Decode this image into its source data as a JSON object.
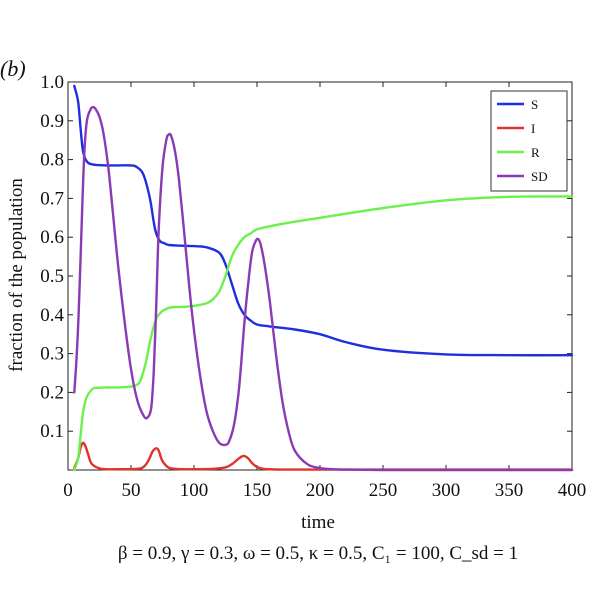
{
  "panel_label": "(b)",
  "params_text": "β = 0.9, γ = 0.3, ω = 0.5, κ = 0.5, C₁ = 100, C_sd = 1",
  "chart_data": {
    "type": "line",
    "xlabel": "time",
    "ylabel": "fraction of the population",
    "xlim": [
      0,
      400
    ],
    "ylim": [
      0,
      1.0
    ],
    "xticks": [
      0,
      50,
      100,
      150,
      200,
      250,
      300,
      350,
      400
    ],
    "yticks": [
      0.1,
      0.2,
      0.3,
      0.4,
      0.5,
      0.6,
      0.7,
      0.8,
      0.9,
      1.0
    ],
    "ytick_labels": [
      "0.1",
      "0.2",
      "0.3",
      "0.4",
      "0.5",
      "0.6",
      "0.7",
      "0.8",
      "0.9",
      "1.0"
    ],
    "grid": false,
    "legend_position": "top-right",
    "series": [
      {
        "name": "S",
        "color": "#1f2fe0",
        "x": [
          5,
          8,
          10,
          12,
          15,
          20,
          30,
          40,
          50,
          55,
          60,
          65,
          68,
          70,
          73,
          76,
          80,
          90,
          100,
          110,
          120,
          125,
          130,
          135,
          140,
          145,
          150,
          160,
          180,
          200,
          220,
          250,
          300,
          350,
          400
        ],
        "y": [
          0.99,
          0.95,
          0.88,
          0.82,
          0.795,
          0.787,
          0.785,
          0.785,
          0.785,
          0.78,
          0.76,
          0.7,
          0.64,
          0.61,
          0.59,
          0.585,
          0.58,
          0.578,
          0.577,
          0.574,
          0.56,
          0.53,
          0.48,
          0.43,
          0.4,
          0.385,
          0.375,
          0.37,
          0.362,
          0.35,
          0.33,
          0.31,
          0.298,
          0.296,
          0.296
        ]
      },
      {
        "name": "I",
        "color": "#e0332b",
        "x": [
          5,
          8,
          10,
          12,
          14,
          16,
          18,
          20,
          25,
          30,
          40,
          55,
          60,
          64,
          67,
          70,
          72,
          74,
          76,
          80,
          85,
          90,
          100,
          115,
          125,
          130,
          135,
          138,
          140,
          143,
          146,
          150,
          155,
          160,
          170,
          200,
          250,
          300,
          350,
          400
        ],
        "y": [
          0.005,
          0.03,
          0.058,
          0.07,
          0.06,
          0.04,
          0.02,
          0.012,
          0.004,
          0.002,
          0.002,
          0.003,
          0.008,
          0.025,
          0.047,
          0.056,
          0.05,
          0.03,
          0.018,
          0.006,
          0.003,
          0.002,
          0.002,
          0.003,
          0.007,
          0.015,
          0.028,
          0.035,
          0.036,
          0.03,
          0.018,
          0.008,
          0.003,
          0.002,
          0.001,
          0.001,
          0.001,
          0.001,
          0.001,
          0.001
        ]
      },
      {
        "name": "R",
        "color": "#6cf04c",
        "x": [
          5,
          8,
          10,
          12,
          14,
          16,
          20,
          25,
          30,
          40,
          50,
          55,
          58,
          62,
          65,
          68,
          70,
          72,
          75,
          78,
          80,
          85,
          90,
          100,
          110,
          115,
          120,
          125,
          130,
          135,
          140,
          145,
          150,
          160,
          180,
          200,
          250,
          300,
          350,
          400
        ],
        "y": [
          0.0,
          0.03,
          0.09,
          0.15,
          0.18,
          0.195,
          0.21,
          0.212,
          0.213,
          0.213,
          0.215,
          0.22,
          0.235,
          0.28,
          0.33,
          0.37,
          0.39,
          0.4,
          0.41,
          0.415,
          0.418,
          0.42,
          0.42,
          0.423,
          0.43,
          0.44,
          0.46,
          0.5,
          0.55,
          0.58,
          0.6,
          0.61,
          0.62,
          0.628,
          0.64,
          0.65,
          0.675,
          0.695,
          0.704,
          0.705
        ]
      },
      {
        "name": "SD",
        "color": "#8a3ab5",
        "x": [
          5,
          7,
          9,
          11,
          13,
          15,
          18,
          20,
          22,
          25,
          28,
          32,
          36,
          40,
          45,
          50,
          55,
          60,
          63,
          66,
          68,
          70,
          72,
          75,
          78,
          80,
          82,
          85,
          88,
          92,
          96,
          100,
          105,
          110,
          115,
          120,
          125,
          128,
          132,
          136,
          140,
          143,
          146,
          149,
          151,
          153,
          156,
          160,
          165,
          170,
          175,
          180,
          190,
          200,
          210,
          220,
          250,
          300,
          350,
          400
        ],
        "y": [
          0.2,
          0.3,
          0.45,
          0.65,
          0.82,
          0.9,
          0.93,
          0.935,
          0.93,
          0.91,
          0.87,
          0.78,
          0.65,
          0.52,
          0.38,
          0.26,
          0.18,
          0.14,
          0.135,
          0.16,
          0.25,
          0.42,
          0.62,
          0.78,
          0.85,
          0.865,
          0.86,
          0.82,
          0.75,
          0.62,
          0.48,
          0.36,
          0.24,
          0.15,
          0.1,
          0.07,
          0.065,
          0.075,
          0.12,
          0.22,
          0.38,
          0.48,
          0.56,
          0.59,
          0.595,
          0.58,
          0.53,
          0.44,
          0.3,
          0.18,
          0.1,
          0.05,
          0.015,
          0.005,
          0.002,
          0.001,
          0.0,
          0.0,
          0.0,
          0.0
        ]
      }
    ]
  }
}
